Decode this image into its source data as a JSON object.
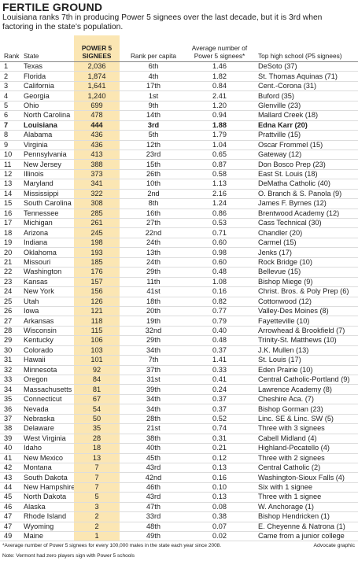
{
  "header": {
    "title": "FERTILE GROUND",
    "subtitle": "Louisiana ranks 7th in producing Power 5 signees over the last decade, but it is 3rd when factoring in the state’s population."
  },
  "table": {
    "columns": [
      "Rank",
      "State",
      "POWER 5 SIGNEES",
      "Rank per capita",
      "Average number of Power 5 signees*",
      "Top high school (P5 signees)"
    ],
    "rows": [
      [
        "1",
        "Texas",
        "2,036",
        "6th",
        "1.46",
        "DeSoto (37)"
      ],
      [
        "2",
        "Florida",
        "1,874",
        "4th",
        "1.82",
        "St. Thomas Aquinas (71)"
      ],
      [
        "3",
        "California",
        "1,641",
        "17th",
        "0.84",
        "Cent.-Corona (31)"
      ],
      [
        "4",
        "Georgia",
        "1,240",
        "1st",
        "2.41",
        "Buford (35)"
      ],
      [
        "5",
        "Ohio",
        "699",
        "9th",
        "1.20",
        "Glenville (23)"
      ],
      [
        "6",
        "North Carolina",
        "478",
        "14th",
        "0.94",
        "Mallard Creek (18)"
      ],
      [
        "7",
        "Louisiana",
        "444",
        "3rd",
        "1.88",
        "Edna Karr (20)"
      ],
      [
        "8",
        "Alabama",
        "436",
        "5th",
        "1.79",
        "Prattville (15)"
      ],
      [
        "9",
        "Virginia",
        "436",
        "12th",
        "1.04",
        "Oscar Frommel (15)"
      ],
      [
        "10",
        "Pennsylvania",
        "413",
        "23rd",
        "0.65",
        "Gateway (12)"
      ],
      [
        "11",
        "New Jersey",
        "388",
        "15th",
        "0.87",
        "Don Bosco Prep (23)"
      ],
      [
        "12",
        "Illinois",
        "373",
        "26th",
        "0.58",
        "East St. Louis (18)"
      ],
      [
        "13",
        "Maryland",
        "341",
        "10th",
        "1.13",
        "DeMatha Catholic (40)"
      ],
      [
        "14",
        "Mississippi",
        "322",
        "2nd",
        "2.16",
        "O. Branch & S. Panola (9)"
      ],
      [
        "15",
        "South Carolina",
        "308",
        "8th",
        "1.24",
        "James F. Byrnes (12)"
      ],
      [
        "16",
        "Tennessee",
        "285",
        "16th",
        "0.86",
        "Brentwood Academy (12)"
      ],
      [
        "17",
        "Michigan",
        "261",
        "27th",
        "0.53",
        "Cass Technical (30)"
      ],
      [
        "18",
        "Arizona",
        "245",
        "22nd",
        "0.71",
        "Chandler (20)"
      ],
      [
        "19",
        "Indiana",
        "198",
        "24th",
        "0.60",
        "Carmel (15)"
      ],
      [
        "20",
        "Oklahoma",
        "193",
        "13th",
        "0.98",
        "Jenks (17)"
      ],
      [
        "21",
        "Missouri",
        "185",
        "24th",
        "0.60",
        "Rock Bridge (10)"
      ],
      [
        "22",
        "Washington",
        "176",
        "29th",
        "0.48",
        "Bellevue (15)"
      ],
      [
        "23",
        "Kansas",
        "157",
        "11th",
        "1.08",
        "Bishop Miege (9)"
      ],
      [
        "24",
        "New York",
        "156",
        "41st",
        "0.16",
        "Christ. Bros. & Poly Prep (6)"
      ],
      [
        "25",
        "Utah",
        "126",
        "18th",
        "0.82",
        "Cottonwood (12)"
      ],
      [
        "26",
        "Iowa",
        "121",
        "20th",
        "0.77",
        "Valley-Des Moines (8)"
      ],
      [
        "27",
        "Arkansas",
        "118",
        "19th",
        "0.79",
        "Fayetteville (10)"
      ],
      [
        "28",
        "Wisconsin",
        "115",
        "32nd",
        "0.40",
        "Arrowhead & Brookfield (7)"
      ],
      [
        "29",
        "Kentucky",
        "106",
        "29th",
        "0.48",
        "Trinity-St. Matthews (10)"
      ],
      [
        "30",
        "Colorado",
        "103",
        "34th",
        "0.37",
        "J.K. Mullen (13)"
      ],
      [
        "31",
        "Hawaii",
        "101",
        "7th",
        "1.41",
        "St. Louis (17)"
      ],
      [
        "32",
        "Minnesota",
        "92",
        "37th",
        "0.33",
        "Eden Prairie (10)"
      ],
      [
        "33",
        "Oregon",
        "84",
        "31st",
        "0.41",
        "Central Catholic-Portland (9)"
      ],
      [
        "34",
        "Massachusetts",
        "81",
        "39th",
        "0.24",
        "Lawrence Academy (8)"
      ],
      [
        "35",
        "Connecticut",
        "67",
        "34th",
        "0.37",
        "Cheshire Aca. (7)"
      ],
      [
        "36",
        "Nevada",
        "54",
        "34th",
        "0.37",
        "Bishop Gorman (23)"
      ],
      [
        "37",
        "Nebraska",
        "50",
        "28th",
        "0.52",
        "Linc. SE & Linc. SW (5)"
      ],
      [
        "38",
        "Delaware",
        "35",
        "21st",
        "0.74",
        "Three with 3 signees"
      ],
      [
        "39",
        "West Virginia",
        "28",
        "38th",
        "0.31",
        "Cabell Midland (4)"
      ],
      [
        "40",
        "Idaho",
        "18",
        "40th",
        "0.21",
        "Highland-Pocatello (4)"
      ],
      [
        "41",
        "New Mexico",
        "13",
        "45th",
        "0.12",
        "Three with 2 signees"
      ],
      [
        "42",
        "Montana",
        "7",
        "43rd",
        "0.13",
        "Central Catholic (2)"
      ],
      [
        "43",
        "South Dakota",
        "7",
        "42nd",
        "0.16",
        "Washington-Sioux Falls (4)"
      ],
      [
        "44",
        "New Hampshire",
        "7",
        "46th",
        "0.10",
        "Six with 1 signee"
      ],
      [
        "45",
        "North Dakota",
        "5",
        "43rd",
        "0.13",
        "Three with 1 signee"
      ],
      [
        "46",
        "Alaska",
        "3",
        "47th",
        "0.08",
        "W. Anchorage (1)"
      ],
      [
        "47",
        "Rhode Island",
        "2",
        "33rd",
        "0.38",
        "Bishop Hendricken (1)"
      ],
      [
        "47",
        "Wyoming",
        "2",
        "48th",
        "0.07",
        "E. Cheyenne & Natrona (1)"
      ],
      [
        "49",
        "Maine",
        "1",
        "49th",
        "0.02",
        "Came from a junior college"
      ]
    ]
  },
  "footer": {
    "footnote": "*Average number of Power 5 signees for every 100,000 males in the state each year since 2008.",
    "credit": "Advocate graphic",
    "note": "Note: Vermont had zero players sign with Power 5 schools"
  }
}
